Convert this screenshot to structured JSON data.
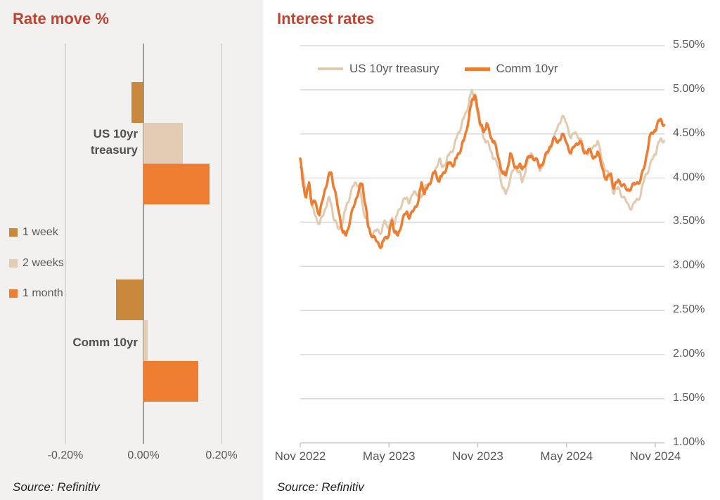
{
  "left_panel": {
    "title": "Rate move %",
    "source": "Source: Refinitiv",
    "x_axis": {
      "tick_labels": [
        "-0.20%",
        "0.00%",
        "0.20%"
      ],
      "tick_values": [
        -0.2,
        0.0,
        0.2
      ]
    },
    "legend": [
      {
        "label": "1 week",
        "color": "#C8893C"
      },
      {
        "label": "2 weeks",
        "color": "#E3CCB3"
      },
      {
        "label": "1 month",
        "color": "#ED7D31"
      }
    ],
    "groups": [
      {
        "label": "US 10yr treasury",
        "bars": [
          {
            "series": "1 week",
            "value": -0.03
          },
          {
            "series": "2 weeks",
            "value": 0.1
          },
          {
            "series": "1 month",
            "value": 0.17
          }
        ]
      },
      {
        "label": "Comm 10yr",
        "bars": [
          {
            "series": "1 week",
            "value": -0.07
          },
          {
            "series": "2 weeks",
            "value": 0.01
          },
          {
            "series": "1 month",
            "value": 0.14
          }
        ]
      }
    ]
  },
  "right_panel": {
    "title": "Interest rates",
    "source": "Source: Refinitiv",
    "legend": [
      {
        "label": "US 10yr treasury",
        "color": "#E2CAAE"
      },
      {
        "label": "Comm 10yr",
        "color": "#ED7D31"
      }
    ],
    "y_ticks": [
      "5.50%",
      "5.00%",
      "4.50%",
      "4.00%",
      "3.50%",
      "3.00%",
      "2.50%",
      "2.00%",
      "1.50%",
      "1.00%"
    ],
    "x_ticks": [
      "Nov 2022",
      "May 2023",
      "Nov 2023",
      "May 2024",
      "Nov 2024"
    ]
  },
  "chart_data": [
    {
      "type": "bar",
      "orientation": "horizontal",
      "title": "Rate move %",
      "categories": [
        "US 10yr treasury",
        "Comm 10yr"
      ],
      "series": [
        {
          "name": "1 week",
          "color": "#C8893C",
          "values": [
            -0.03,
            -0.07
          ]
        },
        {
          "name": "2 weeks",
          "color": "#E3CCB3",
          "values": [
            0.1,
            0.01
          ]
        },
        {
          "name": "1 month",
          "color": "#ED7D31",
          "values": [
            0.17,
            0.14
          ]
        }
      ],
      "xlim": [
        -0.3,
        0.3
      ],
      "x_ticks": [
        -0.2,
        0.0,
        0.2
      ],
      "unit": "%",
      "grid": "vertical",
      "source": "Source: Refinitiv"
    },
    {
      "type": "line",
      "title": "Interest rates",
      "x_unit": "months since Nov 2022",
      "x_tick_positions": [
        0,
        6,
        12,
        18,
        24
      ],
      "x_tick_labels": [
        "Nov 2022",
        "May 2023",
        "Nov 2023",
        "May 2024",
        "Nov 2024"
      ],
      "ylim": [
        1.0,
        5.5
      ],
      "y_ticks": [
        5.5,
        5.0,
        4.5,
        4.0,
        3.5,
        3.0,
        2.5,
        2.0,
        1.5,
        1.0
      ],
      "unit": "%",
      "grid": "horizontal",
      "legend_position": "top",
      "source": "Source: Refinitiv",
      "series": [
        {
          "name": "US 10yr treasury",
          "color": "#E2CAAE",
          "x": [
            0,
            0.2,
            0.4,
            0.6,
            0.8,
            1.0,
            1.3,
            1.6,
            1.9,
            2.1,
            2.3,
            2.6,
            2.9,
            3.1,
            3.4,
            3.7,
            4.0,
            4.2,
            4.4,
            4.6,
            4.9,
            5.2,
            5.5,
            5.7,
            6.0,
            6.2,
            6.4,
            6.6,
            6.9,
            7.2,
            7.4,
            7.7,
            8.0,
            8.2,
            8.4,
            8.6,
            8.9,
            9.1,
            9.4,
            9.6,
            9.9,
            10.1,
            10.4,
            10.6,
            10.9,
            11.1,
            11.4,
            11.6,
            11.8,
            12.0,
            12.2,
            12.4,
            12.6,
            12.9,
            13.1,
            13.4,
            13.7,
            13.9,
            14.2,
            14.5,
            14.8,
            15.0,
            15.3,
            15.6,
            15.9,
            16.2,
            16.5,
            16.8,
            17.1,
            17.4,
            17.7,
            18.0,
            18.3,
            18.6,
            18.9,
            19.2,
            19.5,
            19.8,
            20.1,
            20.4,
            20.7,
            21.0,
            21.2,
            21.5,
            21.8,
            22.1,
            22.4,
            22.7,
            23.0,
            23.3,
            23.6,
            23.9,
            24.1,
            24.35,
            24.6
          ],
          "y": [
            4.12,
            4.05,
            3.82,
            3.88,
            3.68,
            3.58,
            3.48,
            3.6,
            3.78,
            3.7,
            3.52,
            3.42,
            3.52,
            3.68,
            3.82,
            3.95,
            3.92,
            3.7,
            3.55,
            3.45,
            3.35,
            3.42,
            3.38,
            3.52,
            3.44,
            3.55,
            3.48,
            3.62,
            3.72,
            3.78,
            3.72,
            3.85,
            3.82,
            3.78,
            3.88,
            3.92,
            4.0,
            4.08,
            4.22,
            4.12,
            4.2,
            4.28,
            4.35,
            4.48,
            4.6,
            4.7,
            4.85,
            5.0,
            4.88,
            4.72,
            4.58,
            4.45,
            4.42,
            4.3,
            4.22,
            4.12,
            3.88,
            3.82,
            4.0,
            4.12,
            4.08,
            3.95,
            4.15,
            4.28,
            4.22,
            4.08,
            4.2,
            4.3,
            4.42,
            4.58,
            4.7,
            4.62,
            4.45,
            4.52,
            4.45,
            4.32,
            4.28,
            4.35,
            4.42,
            4.2,
            4.08,
            3.98,
            3.82,
            3.9,
            3.78,
            3.72,
            3.65,
            3.75,
            3.8,
            4.02,
            4.12,
            4.25,
            4.32,
            4.45,
            4.42
          ]
        },
        {
          "name": "Comm 10yr",
          "color": "#ED7D31",
          "x": [
            0,
            0.2,
            0.4,
            0.6,
            0.8,
            1.0,
            1.3,
            1.6,
            1.9,
            2.1,
            2.3,
            2.6,
            2.9,
            3.1,
            3.4,
            3.7,
            4.0,
            4.2,
            4.4,
            4.6,
            4.9,
            5.2,
            5.5,
            5.7,
            6.0,
            6.2,
            6.4,
            6.6,
            6.9,
            7.2,
            7.4,
            7.7,
            8.0,
            8.2,
            8.4,
            8.6,
            8.9,
            9.1,
            9.4,
            9.6,
            9.9,
            10.1,
            10.4,
            10.6,
            10.9,
            11.1,
            11.4,
            11.6,
            11.8,
            12.0,
            12.2,
            12.4,
            12.6,
            12.9,
            13.1,
            13.4,
            13.7,
            13.9,
            14.2,
            14.5,
            14.8,
            15.0,
            15.3,
            15.6,
            15.9,
            16.2,
            16.5,
            16.8,
            17.1,
            17.4,
            17.7,
            18.0,
            18.3,
            18.6,
            18.9,
            19.2,
            19.5,
            19.8,
            20.1,
            20.4,
            20.7,
            21.0,
            21.2,
            21.5,
            21.8,
            22.1,
            22.4,
            22.7,
            23.0,
            23.3,
            23.6,
            23.9,
            24.1,
            24.35,
            24.6
          ],
          "y": [
            4.22,
            3.92,
            3.78,
            3.95,
            3.7,
            3.74,
            3.58,
            3.82,
            4.02,
            4.06,
            3.88,
            3.62,
            3.38,
            3.35,
            3.55,
            3.72,
            3.9,
            3.93,
            3.7,
            3.45,
            3.33,
            3.28,
            3.22,
            3.32,
            3.36,
            3.52,
            3.38,
            3.35,
            3.52,
            3.62,
            3.55,
            3.65,
            3.75,
            3.95,
            3.82,
            3.9,
            4.0,
            4.08,
            3.96,
            4.04,
            4.12,
            4.18,
            4.15,
            4.25,
            4.35,
            4.45,
            4.68,
            4.88,
            4.94,
            4.77,
            4.6,
            4.52,
            4.62,
            4.45,
            4.42,
            4.22,
            4.05,
            4.03,
            4.28,
            4.12,
            4.15,
            4.1,
            4.2,
            4.25,
            4.22,
            4.12,
            4.22,
            4.32,
            4.45,
            4.4,
            4.5,
            4.4,
            4.28,
            4.38,
            4.42,
            4.28,
            4.33,
            4.22,
            4.3,
            4.12,
            3.98,
            4.05,
            3.88,
            3.98,
            3.92,
            3.86,
            3.9,
            3.94,
            3.98,
            4.15,
            4.46,
            4.52,
            4.59,
            4.67,
            4.6
          ]
        }
      ]
    }
  ]
}
